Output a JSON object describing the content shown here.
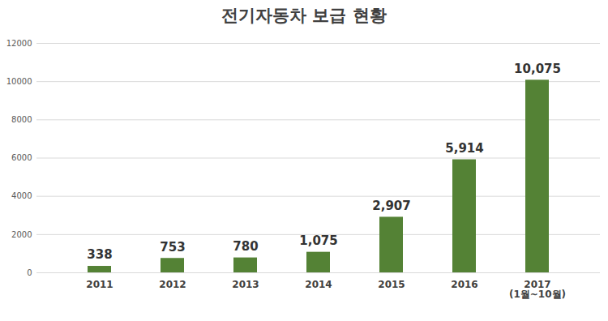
{
  "chart_data": {
    "type": "bar",
    "title": "전기자동차 보급 현황",
    "categories": [
      "2011",
      "2012",
      "2013",
      "2014",
      "2015",
      "2016",
      "2017\n(1월~10월)"
    ],
    "values": [
      338,
      753,
      780,
      1075,
      2907,
      5914,
      10075
    ],
    "value_labels": [
      "338",
      "753",
      "780",
      "1,075",
      "2,907",
      "5,914",
      "10,075"
    ],
    "color": "#548235",
    "ylim": [
      0,
      12000
    ],
    "yticks": [
      0,
      2000,
      4000,
      6000,
      8000,
      10000,
      12000
    ],
    "grid": true,
    "data_labels": true
  }
}
